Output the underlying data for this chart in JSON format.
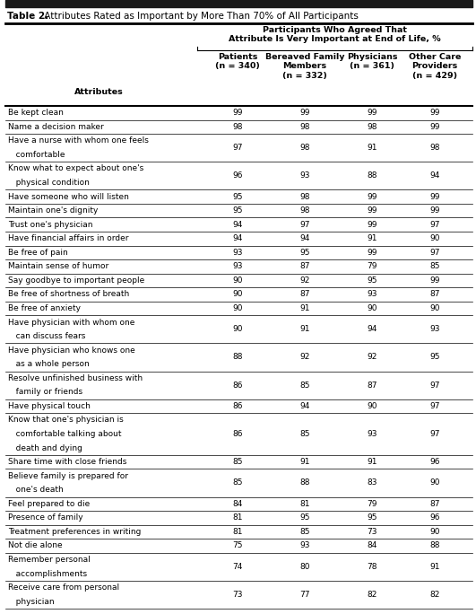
{
  "title_bold": "Table 2.",
  "title_rest": " Attributes Rated as Important by More Than 70% of All Participants",
  "col_header_main": "Participants Who Agreed That\nAttribute Is Very Important at End of Life, %",
  "col_headers_sub": [
    "Patients\n(n = 340)",
    "Bereaved Family\nMembers\n(n = 332)",
    "Physicians\n(n = 361)",
    "Other Care\nProviders\n(n = 429)"
  ],
  "attr_header": "Attributes",
  "rows": [
    {
      "attr": [
        "Be kept clean"
      ],
      "vals": [
        "99",
        "99",
        "99",
        "99"
      ]
    },
    {
      "attr": [
        "Name a decision maker"
      ],
      "vals": [
        "98",
        "98",
        "98",
        "99"
      ]
    },
    {
      "attr": [
        "Have a nurse with whom one feels",
        "   comfortable"
      ],
      "vals": [
        "97",
        "98",
        "91",
        "98"
      ]
    },
    {
      "attr": [
        "Know what to expect about one's",
        "   physical condition"
      ],
      "vals": [
        "96",
        "93",
        "88",
        "94"
      ]
    },
    {
      "attr": [
        "Have someone who will listen"
      ],
      "vals": [
        "95",
        "98",
        "99",
        "99"
      ]
    },
    {
      "attr": [
        "Maintain one's dignity"
      ],
      "vals": [
        "95",
        "98",
        "99",
        "99"
      ]
    },
    {
      "attr": [
        "Trust one's physician"
      ],
      "vals": [
        "94",
        "97",
        "99",
        "97"
      ]
    },
    {
      "attr": [
        "Have financial affairs in order"
      ],
      "vals": [
        "94",
        "94",
        "91",
        "90"
      ]
    },
    {
      "attr": [
        "Be free of pain"
      ],
      "vals": [
        "93",
        "95",
        "99",
        "97"
      ]
    },
    {
      "attr": [
        "Maintain sense of humor"
      ],
      "vals": [
        "93",
        "87",
        "79",
        "85"
      ]
    },
    {
      "attr": [
        "Say goodbye to important people"
      ],
      "vals": [
        "90",
        "92",
        "95",
        "99"
      ]
    },
    {
      "attr": [
        "Be free of shortness of breath"
      ],
      "vals": [
        "90",
        "87",
        "93",
        "87"
      ]
    },
    {
      "attr": [
        "Be free of anxiety"
      ],
      "vals": [
        "90",
        "91",
        "90",
        "90"
      ]
    },
    {
      "attr": [
        "Have physician with whom one",
        "   can discuss fears"
      ],
      "vals": [
        "90",
        "91",
        "94",
        "93"
      ]
    },
    {
      "attr": [
        "Have physician who knows one",
        "   as a whole person"
      ],
      "vals": [
        "88",
        "92",
        "92",
        "95"
      ]
    },
    {
      "attr": [
        "Resolve unfinished business with",
        "   family or friends"
      ],
      "vals": [
        "86",
        "85",
        "87",
        "97"
      ]
    },
    {
      "attr": [
        "Have physical touch"
      ],
      "vals": [
        "86",
        "94",
        "90",
        "97"
      ]
    },
    {
      "attr": [
        "Know that one's physician is",
        "   comfortable talking about",
        "   death and dying"
      ],
      "vals": [
        "86",
        "85",
        "93",
        "97"
      ]
    },
    {
      "attr": [
        "Share time with close friends"
      ],
      "vals": [
        "85",
        "91",
        "91",
        "96"
      ]
    },
    {
      "attr": [
        "Believe family is prepared for",
        "   one's death"
      ],
      "vals": [
        "85",
        "88",
        "83",
        "90"
      ]
    },
    {
      "attr": [
        "Feel prepared to die"
      ],
      "vals": [
        "84",
        "81",
        "79",
        "87"
      ]
    },
    {
      "attr": [
        "Presence of family"
      ],
      "vals": [
        "81",
        "95",
        "95",
        "96"
      ]
    },
    {
      "attr": [
        "Treatment preferences in writing"
      ],
      "vals": [
        "81",
        "85",
        "73",
        "90"
      ]
    },
    {
      "attr": [
        "Not die alone"
      ],
      "vals": [
        "75",
        "93",
        "84",
        "88"
      ]
    },
    {
      "attr": [
        "Remember personal",
        "   accomplishments"
      ],
      "vals": [
        "74",
        "80",
        "78",
        "91"
      ]
    },
    {
      "attr": [
        "Receive care from personal",
        "   physician"
      ],
      "vals": [
        "73",
        "77",
        "82",
        "82"
      ]
    }
  ],
  "bg_color": "#ffffff",
  "text_color": "#000000",
  "font_size_title": 7.5,
  "font_size_header": 6.8,
  "font_size_data": 6.5
}
